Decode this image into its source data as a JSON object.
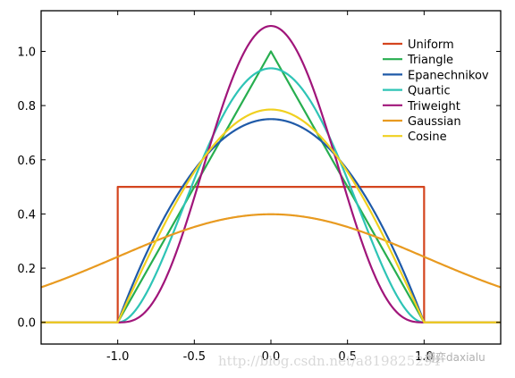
{
  "chart_data": {
    "type": "line",
    "title": "",
    "xlabel": "",
    "ylabel": "",
    "xlim": [
      -1.5,
      1.5
    ],
    "ylim": [
      -0.08,
      1.15
    ],
    "x_ticks": [
      -1.0,
      -0.5,
      0.0,
      0.5,
      1.0
    ],
    "x_tick_labels": [
      "-1.0",
      "-0.5",
      "0.0",
      "0.5",
      "1.0"
    ],
    "y_ticks": [
      0.0,
      0.2,
      0.4,
      0.6,
      0.8,
      1.0
    ],
    "y_tick_labels": [
      "0.0",
      "0.2",
      "0.4",
      "0.6",
      "0.8",
      "1.0"
    ],
    "grid": false,
    "legend_position": "top-right",
    "series": [
      {
        "name": "Uniform",
        "color": "#d4451f",
        "kernel": "uniform",
        "x": [
          -1.5,
          -1.0,
          -1.0,
          1.0,
          1.0,
          1.5
        ],
        "y": [
          0.0,
          0.0,
          0.5,
          0.5,
          0.0,
          0.0
        ]
      },
      {
        "name": "Triangle",
        "color": "#27ae4f",
        "kernel": "triangle",
        "x": [
          -1.5,
          -1.0,
          0.0,
          1.0,
          1.5
        ],
        "y": [
          0.0,
          0.0,
          1.0,
          0.0,
          0.0
        ]
      },
      {
        "name": "Epanechnikov",
        "color": "#1f5aa8",
        "kernel": "epanechnikov",
        "x": [
          -1.0,
          -0.5,
          0.0,
          0.5,
          1.0
        ],
        "y": [
          0.0,
          0.5625,
          0.75,
          0.5625,
          0.0
        ]
      },
      {
        "name": "Quartic",
        "color": "#2ec4b6",
        "kernel": "quartic",
        "x": [
          -1.0,
          -0.5,
          0.0,
          0.5,
          1.0
        ],
        "y": [
          0.0,
          0.527,
          0.9375,
          0.527,
          0.0
        ]
      },
      {
        "name": "Triweight",
        "color": "#a0157a",
        "kernel": "triweight",
        "x": [
          -1.0,
          -0.5,
          0.0,
          0.5,
          1.0
        ],
        "y": [
          0.0,
          0.461,
          1.09375,
          0.461,
          0.0
        ]
      },
      {
        "name": "Gaussian",
        "color": "#e89a20",
        "kernel": "gaussian",
        "x": [
          -1.5,
          -1.0,
          -0.5,
          0.0,
          0.5,
          1.0,
          1.5
        ],
        "y": [
          0.13,
          0.242,
          0.352,
          0.399,
          0.352,
          0.242,
          0.13
        ]
      },
      {
        "name": "Cosine",
        "color": "#f0d020",
        "kernel": "cosine",
        "x": [
          -1.0,
          -0.5,
          0.0,
          0.5,
          1.0
        ],
        "y": [
          0.0,
          0.555,
          0.785,
          0.555,
          0.0
        ]
      }
    ]
  },
  "watermark": {
    "url_text": "http://blog.csdn.net/a819825294",
    "tag_text": "博弈daxialu"
  }
}
